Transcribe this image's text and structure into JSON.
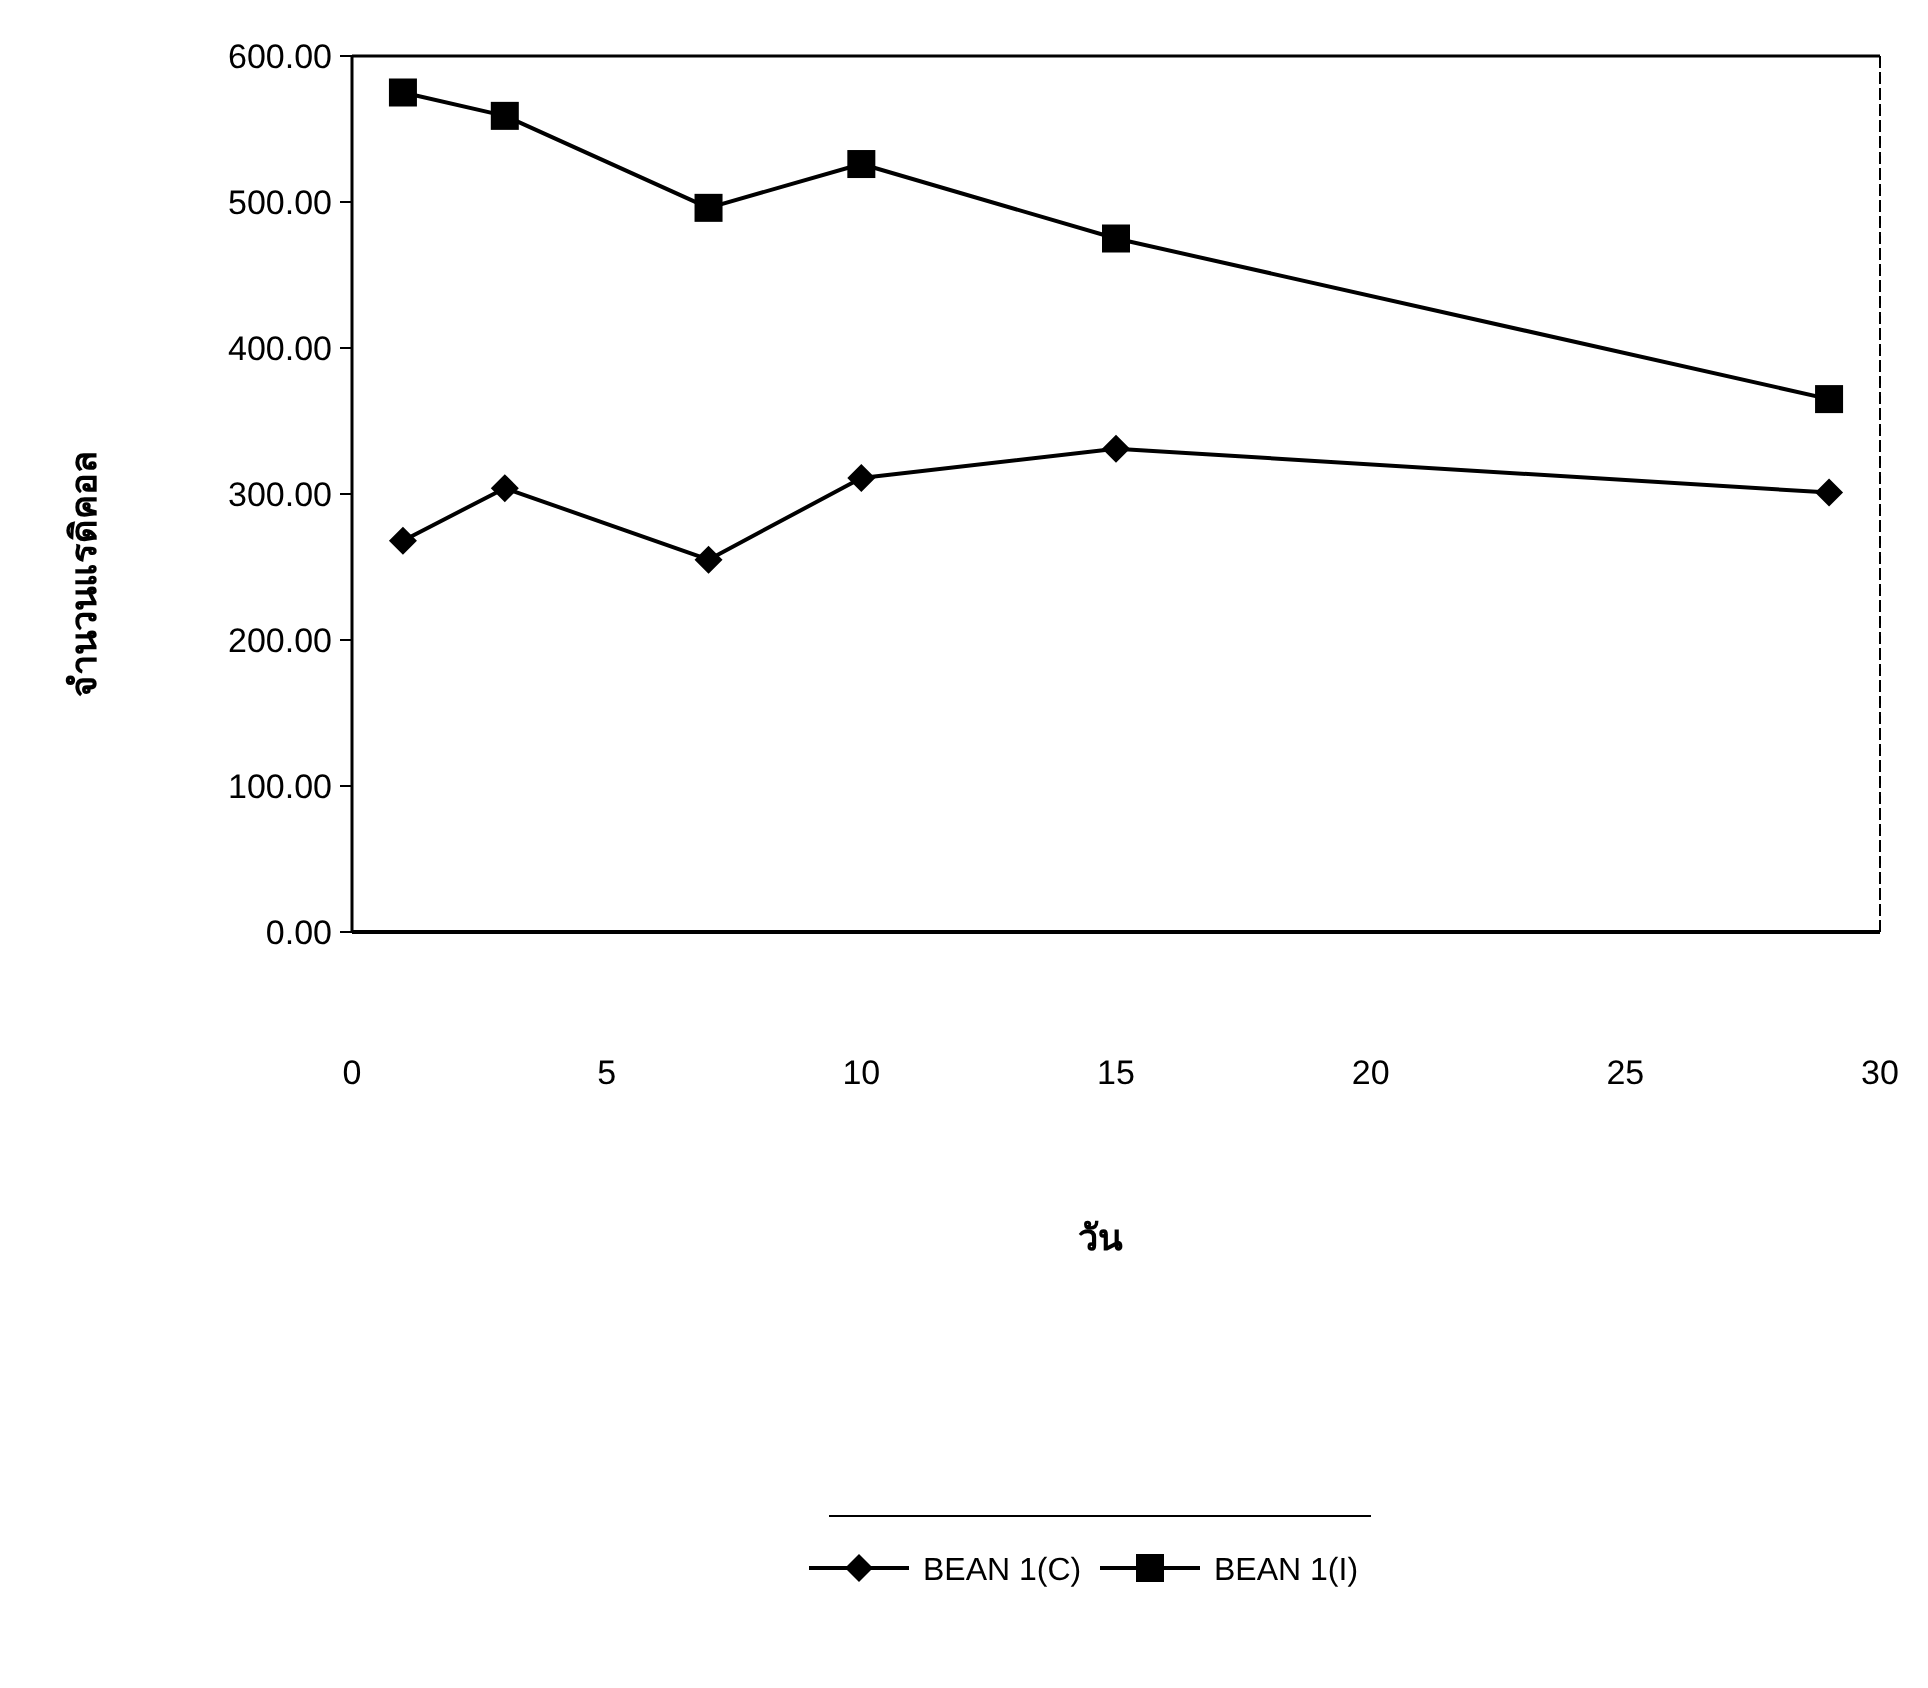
{
  "chart_data": {
    "type": "line",
    "xlabel": "วัน",
    "ylabel": "จำนวนแรดิคอล",
    "xlim": [
      0,
      30
    ],
    "xticks": [
      0,
      5,
      10,
      15,
      20,
      25,
      30
    ],
    "ylim": [
      0,
      600
    ],
    "yticks": [
      {
        "value": 0,
        "label": "0.00"
      },
      {
        "value": 100,
        "label": "100.00"
      },
      {
        "value": 200,
        "label": "200.00"
      },
      {
        "value": 300,
        "label": "300.00"
      },
      {
        "value": 400,
        "label": "400.00"
      },
      {
        "value": 500,
        "label": "500.00"
      },
      {
        "value": 600,
        "label": "600.00"
      }
    ],
    "grid": false,
    "legend": "bottom",
    "series": [
      {
        "name": "BEAN 1(C)",
        "color": "#000000",
        "marker": "diamond",
        "x": [
          1,
          3,
          7,
          10,
          15,
          29
        ],
        "values": [
          268,
          304,
          255,
          311,
          331,
          301
        ]
      },
      {
        "name": "BEAN 1(I)",
        "color": "#000000",
        "marker": "square",
        "x": [
          1,
          3,
          7,
          10,
          15,
          29
        ],
        "values": [
          575,
          559,
          496,
          526,
          475,
          365
        ]
      }
    ]
  }
}
